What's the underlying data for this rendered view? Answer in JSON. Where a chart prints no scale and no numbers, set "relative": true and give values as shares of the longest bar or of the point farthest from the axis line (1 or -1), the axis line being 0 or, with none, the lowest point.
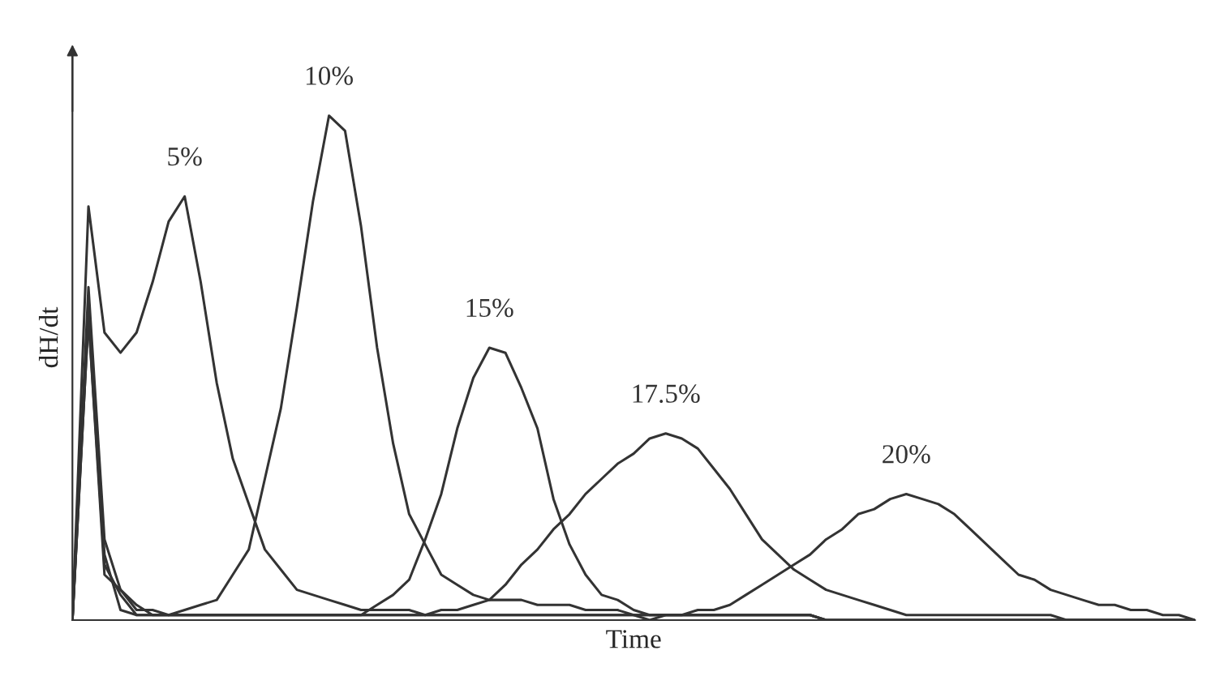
{
  "chart_data": {
    "type": "line",
    "relative": true,
    "xlabel": "Time",
    "ylabel": "dH/dt",
    "tick_labels": false,
    "legend": false,
    "marker": "none",
    "line_style": "solid",
    "categories": [
      null,
      null,
      null,
      null,
      null,
      null,
      null,
      null,
      null,
      null,
      null,
      null,
      null,
      null,
      null,
      null,
      null,
      null,
      null,
      null,
      null,
      null,
      null,
      null,
      null,
      null,
      null,
      null,
      null,
      null,
      null,
      null,
      null,
      null,
      null,
      null,
      null,
      null,
      null,
      null,
      null,
      null,
      null,
      null,
      null,
      null,
      null,
      null,
      null,
      null,
      null,
      null,
      null,
      null,
      null,
      null,
      null,
      null,
      null,
      null,
      null,
      null,
      null,
      null,
      null,
      null,
      null,
      null,
      null,
      null,
      null
    ],
    "series": [
      {
        "name": "5%",
        "color": "#333333",
        "values": [
          0,
          0.82,
          0.57,
          0.53,
          0.57,
          0.67,
          0.79,
          0.84,
          0.67,
          0.47,
          0.32,
          0.23,
          0.14,
          0.1,
          0.06,
          0.05,
          0.04,
          0.03,
          0.02,
          0.02,
          0.02,
          0.02,
          0.01,
          0.01,
          0.01,
          0.01,
          0.01,
          0.01,
          0.01,
          0.01,
          0.01,
          0.01,
          0.01,
          0.01,
          0.01,
          0.01,
          0.01,
          0.01,
          0.01,
          0.01,
          0.01,
          0.01,
          0.01,
          0.01,
          0.01,
          0.01,
          0.01,
          0,
          0,
          0,
          0,
          0,
          0,
          0,
          0,
          0,
          0,
          0,
          0,
          0,
          0,
          0,
          0,
          0,
          0,
          0,
          0,
          0,
          0,
          0,
          0
        ]
      },
      {
        "name": "10%",
        "color": "#333333",
        "values": [
          0,
          0.66,
          0.16,
          0.06,
          0.02,
          0.02,
          0.01,
          0.02,
          0.03,
          0.04,
          0.09,
          0.14,
          0.28,
          0.42,
          0.62,
          0.83,
          1.0,
          0.97,
          0.78,
          0.54,
          0.35,
          0.21,
          0.15,
          0.09,
          0.07,
          0.05,
          0.04,
          0.04,
          0.04,
          0.03,
          0.03,
          0.03,
          0.02,
          0.02,
          0.02,
          0.01,
          0.01,
          0.01,
          0.01,
          0.01,
          0.01,
          0.01,
          0.01,
          0.01,
          0.01,
          0.01,
          0.01,
          0,
          0,
          0,
          0,
          0,
          0,
          0,
          0,
          0,
          0,
          0,
          0,
          0,
          0,
          0,
          0,
          0,
          0,
          0,
          0,
          0,
          0,
          0,
          0
        ]
      },
      {
        "name": "15%",
        "color": "#333333",
        "values": [
          0,
          0.62,
          0.13,
          0.02,
          0.01,
          0.01,
          0.01,
          0.01,
          0.01,
          0.01,
          0.01,
          0.01,
          0.01,
          0.01,
          0.01,
          0.01,
          0.01,
          0.01,
          0.01,
          0.03,
          0.05,
          0.08,
          0.16,
          0.25,
          0.38,
          0.48,
          0.54,
          0.53,
          0.46,
          0.38,
          0.24,
          0.15,
          0.09,
          0.05,
          0.04,
          0.02,
          0.01,
          0.01,
          0.01,
          0.01,
          0.01,
          0.01,
          0.01,
          0.01,
          0.01,
          0.01,
          0.01,
          0,
          0,
          0,
          0,
          0,
          0,
          0,
          0,
          0,
          0,
          0,
          0,
          0,
          0,
          0,
          0,
          0,
          0,
          0,
          0,
          0,
          0,
          0,
          0
        ]
      },
      {
        "name": "17.5%",
        "color": "#333333",
        "values": [
          0,
          0.6,
          0.11,
          0.05,
          0.01,
          0.01,
          0.01,
          0.01,
          0.01,
          0.01,
          0.01,
          0.01,
          0.01,
          0.01,
          0.01,
          0.01,
          0.01,
          0.01,
          0.01,
          0.01,
          0.01,
          0.01,
          0.01,
          0.02,
          0.02,
          0.03,
          0.04,
          0.07,
          0.11,
          0.14,
          0.18,
          0.21,
          0.25,
          0.28,
          0.31,
          0.33,
          0.36,
          0.37,
          0.36,
          0.34,
          0.3,
          0.26,
          0.21,
          0.16,
          0.13,
          0.1,
          0.08,
          0.06,
          0.05,
          0.04,
          0.03,
          0.02,
          0.01,
          0.01,
          0.01,
          0.01,
          0.01,
          0.01,
          0.01,
          0.01,
          0.01,
          0.01,
          0,
          0,
          0,
          0,
          0,
          0,
          0,
          0,
          0
        ]
      },
      {
        "name": "20%",
        "color": "#333333",
        "values": [
          0,
          0.6,
          0.09,
          0.06,
          0.03,
          0.01,
          0.01,
          0.01,
          0.01,
          0.01,
          0.01,
          0.01,
          0.01,
          0.01,
          0.01,
          0.01,
          0.01,
          0.01,
          0.01,
          0.01,
          0.01,
          0.01,
          0.01,
          0.01,
          0.01,
          0.01,
          0.01,
          0.01,
          0.01,
          0.01,
          0.01,
          0.01,
          0.01,
          0.01,
          0.01,
          0.01,
          0,
          0.01,
          0.01,
          0.02,
          0.02,
          0.03,
          0.05,
          0.07,
          0.09,
          0.11,
          0.13,
          0.16,
          0.18,
          0.21,
          0.22,
          0.24,
          0.25,
          0.24,
          0.23,
          0.21,
          0.18,
          0.15,
          0.12,
          0.09,
          0.08,
          0.06,
          0.05,
          0.04,
          0.03,
          0.03,
          0.02,
          0.02,
          0.01,
          0.01,
          0
        ]
      }
    ]
  }
}
